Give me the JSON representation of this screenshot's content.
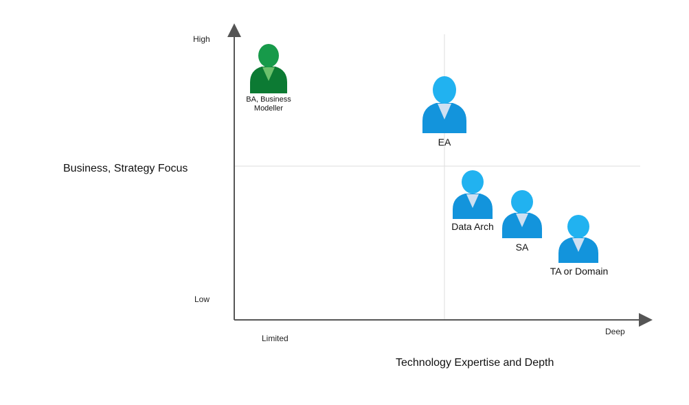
{
  "axes": {
    "y_title": "Business, Strategy Focus",
    "y_high": "High",
    "y_low": "Low",
    "x_title": "Technology Expertise and Depth",
    "x_low": "Limited",
    "x_high": "Deep"
  },
  "roles": [
    {
      "label": "BA, Business\nModeller",
      "color": "#1a8a3e"
    },
    {
      "label": "EA",
      "color": "#1aa3e8"
    },
    {
      "label": "Data Arch",
      "color": "#1aa3e8"
    },
    {
      "label": "SA",
      "color": "#1aa3e8"
    },
    {
      "label": "TA or Domain",
      "color": "#1aa3e8"
    }
  ],
  "colors": {
    "axis": "#555555",
    "gridline": "#dddddd",
    "green_head": "#179a4a",
    "green_body": "#0c7a33",
    "green_collar": "#6cc06c",
    "blue_head": "#21b2f0",
    "blue_body": "#1394dc",
    "blue_collar": "#cfe0f2"
  }
}
